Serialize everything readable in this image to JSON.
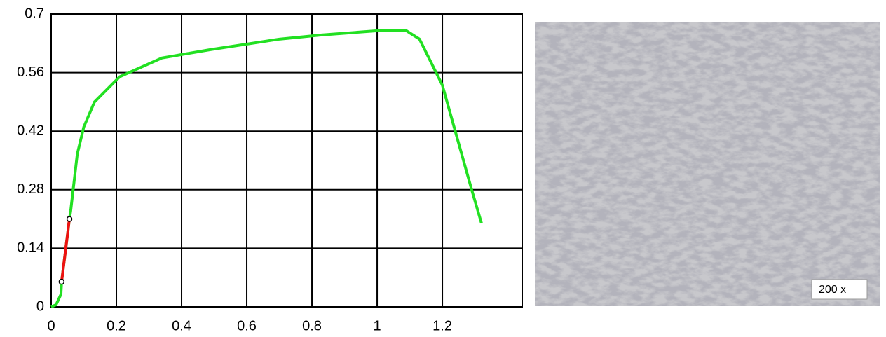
{
  "chart_data": {
    "type": "line",
    "xlim": [
      0,
      1.445
    ],
    "ylim": [
      0,
      0.7
    ],
    "xticks": [
      0,
      0.2,
      0.4,
      0.6,
      0.8,
      1,
      1.2
    ],
    "yticks": [
      0,
      0.14,
      0.28,
      0.42,
      0.56,
      0.7
    ],
    "grid": true,
    "series": [
      {
        "color": "#22e022",
        "x": [
          0,
          0.015,
          0.03,
          0.032,
          0.056,
          0.06,
          0.08,
          0.1,
          0.133,
          0.21,
          0.34,
          0.49,
          0.7,
          0.83,
          1.0,
          1.09,
          1.13,
          1.2,
          1.29,
          1.32
        ],
        "values": [
          0,
          0.005,
          0.03,
          0.06,
          0.21,
          0.23,
          0.365,
          0.43,
          0.49,
          0.55,
          0.595,
          0.615,
          0.64,
          0.65,
          0.66,
          0.66,
          0.64,
          0.53,
          0.28,
          0.2
        ]
      },
      {
        "color": "#ee1111",
        "markers": true,
        "x": [
          0.032,
          0.056
        ],
        "values": [
          0.06,
          0.21
        ]
      }
    ]
  },
  "image": {
    "label": "200 x"
  }
}
